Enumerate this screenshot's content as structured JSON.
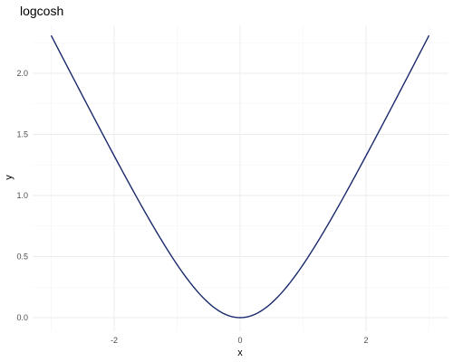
{
  "chart_data": {
    "type": "line",
    "title": "logcosh",
    "xlabel": "x",
    "ylabel": "y",
    "xlim": [
      -3.0,
      3.0
    ],
    "ylim": [
      0.0,
      2.309
    ],
    "x_ticks": [
      -2,
      0,
      2
    ],
    "x_tick_labels": [
      "-2",
      "0",
      "2"
    ],
    "y_ticks": [
      0.0,
      0.5,
      1.0,
      1.5,
      2.0
    ],
    "y_tick_labels": [
      "0.0",
      "0.5",
      "1.0",
      "1.5",
      "2.0"
    ],
    "grid": true,
    "series": [
      {
        "color": "#1a2a6c",
        "x": [
          -3.0,
          -2.75,
          -2.5,
          -2.25,
          -2.0,
          -1.75,
          -1.5,
          -1.25,
          -1.0,
          -0.75,
          -0.5,
          -0.25,
          0.0,
          0.25,
          0.5,
          0.75,
          1.0,
          1.25,
          1.5,
          1.75,
          2.0,
          2.25,
          2.5,
          2.75,
          3.0
        ],
        "y": [
          2.309,
          2.06,
          1.812,
          1.566,
          1.325,
          1.089,
          0.862,
          0.646,
          0.434,
          0.265,
          0.12,
          0.031,
          0.0,
          0.031,
          0.12,
          0.265,
          0.434,
          0.646,
          0.862,
          1.089,
          1.325,
          1.566,
          1.812,
          2.06,
          2.309
        ]
      }
    ]
  }
}
